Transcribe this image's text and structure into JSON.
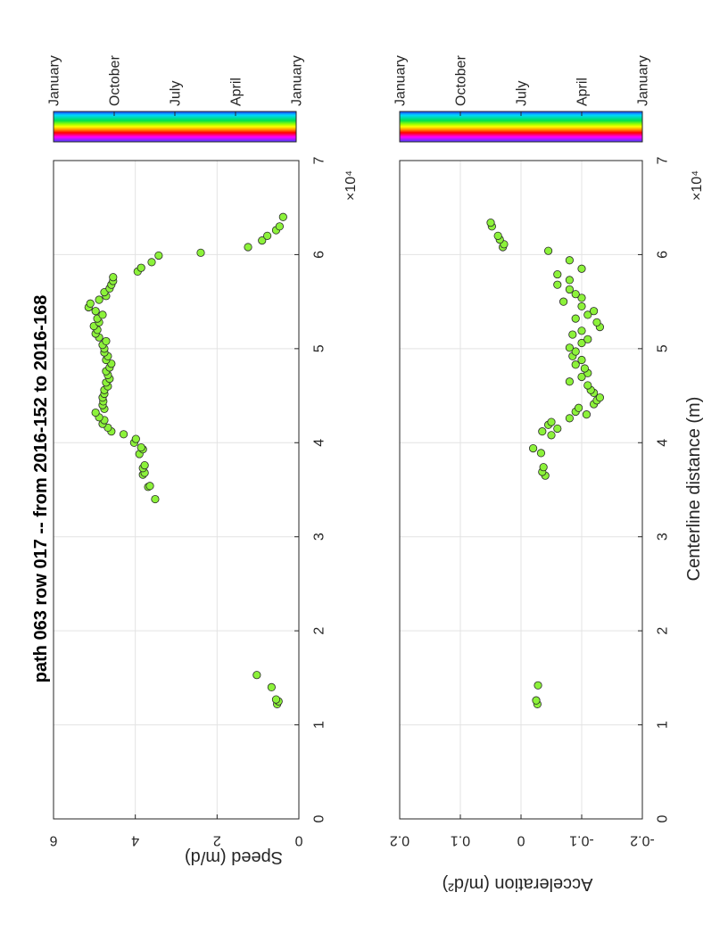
{
  "chart_data": [
    {
      "type": "scatter",
      "title": "path 063 row 017  -- from 2016-152 to 2016-168",
      "xlabel": "",
      "ylabel": "Speed (m/d)",
      "xlim": [
        0,
        70000
      ],
      "ylim": [
        0,
        7
      ],
      "x_ticks": [
        "0",
        "1",
        "2",
        "3",
        "4",
        "5",
        "6",
        "7"
      ],
      "y_ticks": [
        "0",
        "2",
        "4",
        "6"
      ],
      "x_exponent": "×10⁴",
      "grid": true,
      "marker_color": "#8cf23a",
      "colorbar": {
        "labels": [
          "January",
          "April",
          "July",
          "October",
          "January"
        ],
        "colormap": "hsv"
      },
      "series": [
        {
          "x": [
            12200,
            12500,
            12700,
            14000,
            15300,
            34000,
            35300,
            35400,
            36600,
            36800,
            37300,
            37600,
            38800,
            39300,
            39500,
            40000,
            40400,
            40900,
            41200,
            41600,
            42000,
            42400,
            42700,
            43200,
            43600,
            44000,
            44400,
            44800,
            45200,
            45600,
            46000,
            46400,
            46800,
            47200,
            47600,
            48000,
            48400,
            48800,
            49200,
            49600,
            50000,
            50400,
            50800,
            51200,
            51600,
            52000,
            52400,
            52800,
            53200,
            53600,
            54000,
            54400,
            54800,
            55200,
            55600,
            56000,
            56400,
            56800,
            57200,
            57600,
            58200,
            58600,
            59200,
            59900,
            60200,
            60800,
            61500,
            62000,
            62600,
            63000,
            64000
          ],
          "y": [
            0.62,
            0.58,
            0.65,
            0.78,
            1.2,
            4.1,
            4.3,
            4.25,
            4.45,
            4.4,
            4.45,
            4.4,
            4.55,
            4.45,
            4.5,
            4.7,
            4.65,
            5.0,
            5.35,
            5.45,
            5.6,
            5.55,
            5.7,
            5.8,
            5.55,
            5.6,
            5.58,
            5.6,
            5.55,
            5.55,
            5.45,
            5.5,
            5.4,
            5.45,
            5.5,
            5.4,
            5.35,
            5.5,
            5.45,
            5.55,
            5.55,
            5.6,
            5.5,
            5.7,
            5.8,
            5.75,
            5.85,
            5.7,
            5.75,
            5.6,
            5.8,
            6.0,
            5.95,
            5.7,
            5.5,
            5.55,
            5.4,
            5.35,
            5.3,
            5.3,
            4.6,
            4.5,
            4.2,
            4.0,
            2.8,
            1.45,
            1.05,
            0.9,
            0.65,
            0.55,
            0.45
          ]
        }
      ]
    },
    {
      "type": "scatter",
      "title": "",
      "xlabel": "Centerline distance (m)",
      "ylabel": "Acceleration (m/d²)",
      "xlim": [
        0,
        70000
      ],
      "ylim": [
        -0.2,
        0.2
      ],
      "x_ticks": [
        "0",
        "1",
        "2",
        "3",
        "4",
        "5",
        "6",
        "7"
      ],
      "y_ticks": [
        "-0.2",
        "-0.1",
        "0",
        "0.1",
        "0.2"
      ],
      "x_exponent": "×10⁴",
      "grid": true,
      "marker_color": "#8cf23a",
      "colorbar": {
        "labels": [
          "January",
          "April",
          "July",
          "October",
          "January"
        ],
        "colormap": "hsv"
      },
      "series": [
        {
          "x": [
            12200,
            12600,
            14200,
            36500,
            36900,
            37400,
            38900,
            39400,
            40800,
            41200,
            41500,
            41900,
            42200,
            42600,
            43000,
            43300,
            43700,
            44100,
            44500,
            44800,
            45300,
            45600,
            46100,
            46500,
            47000,
            47400,
            47900,
            48300,
            48800,
            49200,
            49700,
            50100,
            50600,
            51000,
            51500,
            51900,
            52300,
            52800,
            53200,
            53600,
            54000,
            54500,
            55000,
            55400,
            55800,
            56300,
            56800,
            57300,
            57900,
            58500,
            59400,
            60400,
            60800,
            61100,
            61600,
            62000,
            63000,
            63400
          ],
          "y": [
            -0.027,
            -0.025,
            -0.028,
            -0.04,
            -0.035,
            -0.037,
            -0.033,
            -0.02,
            -0.05,
            -0.035,
            -0.06,
            -0.045,
            -0.05,
            -0.08,
            -0.108,
            -0.09,
            -0.095,
            -0.12,
            -0.125,
            -0.13,
            -0.12,
            -0.115,
            -0.11,
            -0.08,
            -0.1,
            -0.11,
            -0.105,
            -0.09,
            -0.1,
            -0.085,
            -0.09,
            -0.08,
            -0.1,
            -0.11,
            -0.085,
            -0.1,
            -0.13,
            -0.125,
            -0.09,
            -0.11,
            -0.12,
            -0.1,
            -0.07,
            -0.1,
            -0.09,
            -0.08,
            -0.06,
            -0.08,
            -0.06,
            -0.1,
            -0.08,
            -0.045,
            0.03,
            0.028,
            0.035,
            0.038,
            0.048,
            0.05
          ]
        }
      ]
    }
  ]
}
